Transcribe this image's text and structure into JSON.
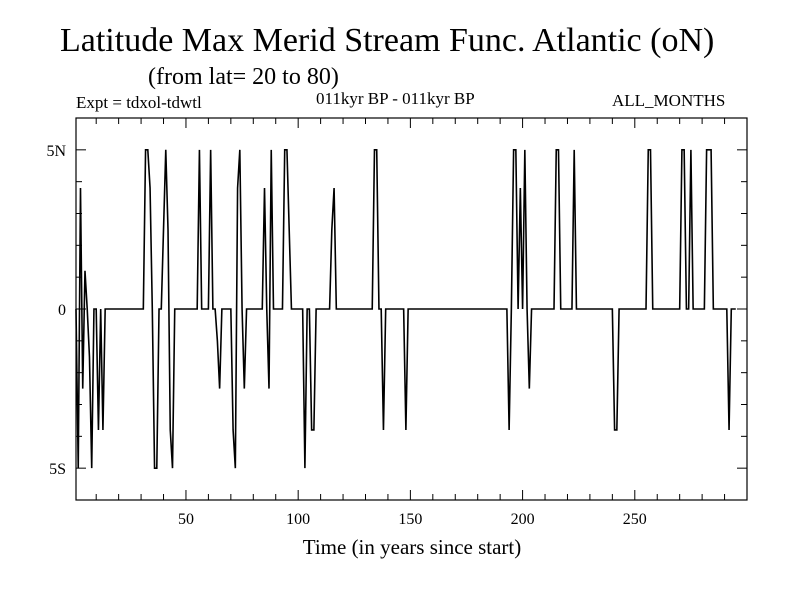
{
  "header": {
    "title": "Latitude Max Merid Stream Func. Atlantic (oN)",
    "subtitle": "(from lat= 20 to 80)",
    "expt": "Expt = tdxol-tdwtl",
    "period": "011kyr BP - 011kyr BP",
    "months": "ALL_MONTHS"
  },
  "chart_data": {
    "type": "line",
    "title": "Latitude Max Merid Stream Func. Atlantic (oN)",
    "xlabel": "Time (in years since start)",
    "ylabel": "",
    "xlim": [
      1,
      300
    ],
    "ylim": [
      -6,
      6
    ],
    "x_ticks": [
      50,
      100,
      150,
      200,
      250
    ],
    "x_tick_labels": [
      "50",
      "100",
      "150",
      "200",
      "250"
    ],
    "y_ticks": [
      -5,
      0,
      5
    ],
    "y_tick_labels": [
      "5S",
      "0",
      "5N"
    ],
    "grid": false,
    "series": [
      {
        "x_start": 1,
        "x_step": 1,
        "values": [
          0,
          -5,
          3.8,
          -2.5,
          1.2,
          0,
          -1.5,
          -5,
          0,
          0,
          -3.8,
          0,
          -3.8,
          0,
          0,
          0,
          0,
          0,
          0,
          0,
          0,
          0,
          0,
          0,
          0,
          0,
          0,
          0,
          0,
          0,
          0,
          5,
          5,
          3.8,
          0,
          -5,
          -5,
          0,
          0,
          2.5,
          5,
          2.5,
          -3.8,
          -5,
          0,
          0,
          0,
          0,
          0,
          0,
          0,
          0,
          0,
          0,
          0,
          5,
          0,
          0,
          0,
          0,
          5,
          0,
          0,
          -1,
          -2.5,
          0,
          0,
          0,
          0,
          0,
          -3.8,
          -5,
          3.8,
          5,
          0,
          -2.5,
          0,
          0,
          0,
          0,
          0,
          0,
          0,
          0,
          3.8,
          0,
          -2.5,
          5,
          0,
          0,
          0,
          0,
          0,
          5,
          5,
          2.5,
          0,
          0,
          0,
          0,
          0,
          0,
          -5,
          0,
          0,
          -3.8,
          -3.8,
          0,
          0,
          0,
          0,
          0,
          0,
          0,
          2.5,
          3.8,
          0,
          0,
          0,
          0,
          0,
          0,
          0,
          0,
          0,
          0,
          0,
          0,
          0,
          0,
          0,
          0,
          0,
          5,
          5,
          0,
          0,
          -3.8,
          0,
          0,
          0,
          0,
          0,
          0,
          0,
          0,
          0,
          -3.8,
          0,
          0,
          0,
          0,
          0,
          0,
          0,
          0,
          0,
          0,
          0,
          0,
          0,
          0,
          0,
          0,
          0,
          0,
          0,
          0,
          0,
          0,
          0,
          0,
          0,
          0,
          0,
          0,
          0,
          0,
          0,
          0,
          0,
          0,
          0,
          0,
          0,
          0,
          0,
          0,
          0,
          0,
          0,
          0,
          0,
          -3.8,
          0,
          5,
          5,
          0,
          3.8,
          0,
          5,
          0,
          -2.5,
          0,
          0,
          0,
          0,
          0,
          0,
          0,
          0,
          0,
          0,
          0,
          5,
          5,
          0,
          0,
          0,
          0,
          0,
          0,
          5,
          0,
          0,
          0,
          0,
          0,
          0,
          0,
          0,
          0,
          0,
          0,
          0,
          0,
          0,
          0,
          0,
          0,
          -3.8,
          -3.8,
          0,
          0,
          0,
          0,
          0,
          0,
          0,
          0,
          0,
          0,
          0,
          0,
          0,
          5,
          5,
          0,
          0,
          0,
          0,
          0,
          0,
          0,
          0,
          0,
          0,
          0,
          0,
          0,
          5,
          5,
          0,
          0,
          5,
          0,
          0,
          0,
          0,
          0,
          0,
          5,
          5,
          5,
          0,
          0,
          0,
          0,
          0,
          0,
          0,
          -3.8,
          0,
          0,
          0
        ]
      }
    ]
  }
}
